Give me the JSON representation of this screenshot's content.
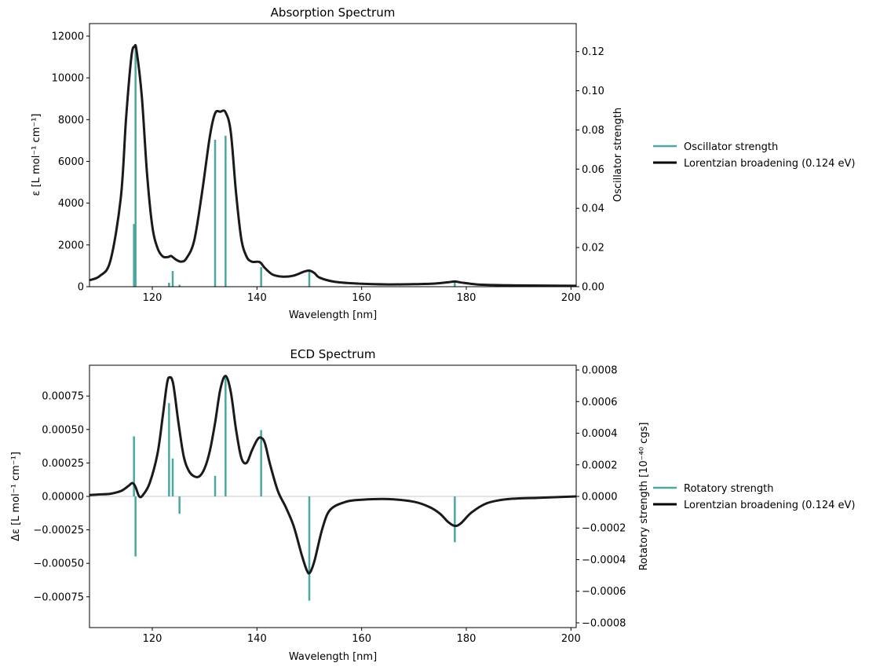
{
  "colors": {
    "stick": "#4aa8a0",
    "curve": "#1a1a1a",
    "zero_line": "#c8c8c8"
  },
  "chart_data": [
    {
      "type": "line",
      "title": "Absorption Spectrum",
      "xlabel": "Wavelength [nm]",
      "ylabel": "ε [L mol⁻¹ cm⁻¹]",
      "y2label": "Oscillator strength",
      "xlim": [
        108,
        201
      ],
      "ylim": [
        0,
        12600
      ],
      "y2lim": [
        0,
        0.1343
      ],
      "xticks": [
        120,
        140,
        160,
        180,
        200
      ],
      "yticks": [
        0,
        2000,
        4000,
        6000,
        8000,
        10000,
        12000
      ],
      "y2ticks": [
        0.0,
        0.02,
        0.04,
        0.06,
        0.08,
        0.1,
        0.12
      ],
      "y2tick_labels": [
        "0.00",
        "0.02",
        "0.04",
        "0.06",
        "0.08",
        "0.10",
        "0.12"
      ],
      "legend": [
        "Oscillator strength",
        "Lorentzian broadening (0.124 eV)"
      ],
      "legend_position": "right",
      "zero_line": false,
      "fwhm_ev": 0.124,
      "sticks": {
        "name": "Oscillator strength",
        "x": [
          116.5,
          116.8,
          123.2,
          123.9,
          125.2,
          132.0,
          134.0,
          140.8,
          150.0,
          177.8
        ],
        "values": [
          0.032,
          0.122,
          0.002,
          0.008,
          0.001,
          0.075,
          0.077,
          0.01,
          0.008,
          0.003
        ]
      },
      "curve": {
        "name": "Lorentzian broadening (0.124 eV)",
        "points": [
          [
            108,
            310
          ],
          [
            110,
            520
          ],
          [
            112,
            1250
          ],
          [
            114,
            4300
          ],
          [
            115,
            8100
          ],
          [
            116,
            11000
          ],
          [
            116.6,
            11500
          ],
          [
            117,
            11300
          ],
          [
            118,
            9100
          ],
          [
            119,
            5400
          ],
          [
            120,
            2900
          ],
          [
            121,
            1850
          ],
          [
            122,
            1450
          ],
          [
            123,
            1420
          ],
          [
            123.6,
            1470
          ],
          [
            124.5,
            1300
          ],
          [
            125.5,
            1200
          ],
          [
            126.5,
            1350
          ],
          [
            128,
            2200
          ],
          [
            129.5,
            4500
          ],
          [
            131,
            7200
          ],
          [
            132,
            8300
          ],
          [
            133,
            8380
          ],
          [
            134,
            8350
          ],
          [
            135,
            7400
          ],
          [
            136,
            4500
          ],
          [
            137,
            2300
          ],
          [
            138,
            1450
          ],
          [
            139,
            1200
          ],
          [
            140.5,
            1180
          ],
          [
            141.5,
            900
          ],
          [
            143,
            580
          ],
          [
            145,
            480
          ],
          [
            147,
            530
          ],
          [
            149,
            720
          ],
          [
            150,
            770
          ],
          [
            151,
            650
          ],
          [
            152,
            430
          ],
          [
            155,
            230
          ],
          [
            160,
            140
          ],
          [
            165,
            110
          ],
          [
            170,
            120
          ],
          [
            174,
            150
          ],
          [
            176.5,
            210
          ],
          [
            177.8,
            250
          ],
          [
            179,
            200
          ],
          [
            182,
            110
          ],
          [
            186,
            75
          ],
          [
            190,
            60
          ],
          [
            195,
            50
          ],
          [
            201,
            42
          ]
        ]
      }
    },
    {
      "type": "line",
      "title": "ECD Spectrum",
      "xlabel": "Wavelength [nm]",
      "ylabel": "Δε [L mol⁻¹ cm⁻¹]",
      "y2label": "Rotatory strength [10⁻⁴⁰ cgs]",
      "xlim": [
        108,
        201
      ],
      "ylim": [
        -0.00098,
        0.00098
      ],
      "y2lim": [
        -0.00083,
        0.00083
      ],
      "xticks": [
        120,
        140,
        160,
        180,
        200
      ],
      "yticks": [
        -0.00075,
        -0.0005,
        -0.00025,
        0.0,
        0.00025,
        0.0005,
        0.00075
      ],
      "ytick_labels": [
        "−0.00075",
        "−0.00050",
        "−0.00025",
        "0.00000",
        "0.00025",
        "0.00050",
        "0.00075"
      ],
      "y2ticks": [
        -0.0008,
        -0.0006,
        -0.0004,
        -0.0002,
        0.0,
        0.0002,
        0.0004,
        0.0006,
        0.0008
      ],
      "y2tick_labels": [
        "−0.0008",
        "−0.0006",
        "−0.0004",
        "−0.0002",
        "0.0000",
        "0.0002",
        "0.0004",
        "0.0006",
        "0.0008"
      ],
      "legend": [
        "Rotatory strength",
        "Lorentzian broadening (0.124 eV)"
      ],
      "legend_position": "right",
      "zero_line": true,
      "fwhm_ev": 0.124,
      "sticks": {
        "name": "Rotatory strength",
        "x": [
          116.5,
          116.8,
          123.2,
          123.9,
          125.2,
          132.0,
          134.0,
          140.8,
          150.0,
          177.8
        ],
        "values": [
          0.00038,
          -0.00038,
          0.00059,
          0.00024,
          -0.00011,
          0.00013,
          0.00076,
          0.00042,
          -0.00066,
          -0.00029
        ]
      },
      "curve": {
        "name": "Lorentzian broadening (0.124 eV)",
        "points": [
          [
            108,
            1e-05
          ],
          [
            110,
            1.5e-05
          ],
          [
            112,
            2e-05
          ],
          [
            114,
            4e-05
          ],
          [
            115.5,
            8e-05
          ],
          [
            116.2,
            0.0001
          ],
          [
            116.8,
            7e-05
          ],
          [
            117.5,
            0.0
          ],
          [
            118.2,
            1e-05
          ],
          [
            119.5,
            0.0001
          ],
          [
            121,
            0.00032
          ],
          [
            122,
            0.0006
          ],
          [
            122.8,
            0.00084
          ],
          [
            123.3,
            0.00089
          ],
          [
            124,
            0.00084
          ],
          [
            125,
            0.00055
          ],
          [
            126,
            0.0003
          ],
          [
            127,
            0.00019
          ],
          [
            128,
            0.00015
          ],
          [
            129,
            0.00015
          ],
          [
            130,
            0.00021
          ],
          [
            131,
            0.00034
          ],
          [
            132,
            0.00055
          ],
          [
            133,
            0.0008
          ],
          [
            134,
            0.0009
          ],
          [
            135,
            0.00078
          ],
          [
            136,
            0.0005
          ],
          [
            137,
            0.00029
          ],
          [
            138,
            0.00025
          ],
          [
            139,
            0.00034
          ],
          [
            140,
            0.00042
          ],
          [
            140.7,
            0.00044
          ],
          [
            141.5,
            0.0004
          ],
          [
            142.5,
            0.00024
          ],
          [
            144,
            4e-05
          ],
          [
            145.5,
            -8e-05
          ],
          [
            147,
            -0.00022
          ],
          [
            148.5,
            -0.00043
          ],
          [
            149.5,
            -0.00055
          ],
          [
            150.1,
            -0.00057
          ],
          [
            151,
            -0.00048
          ],
          [
            152.5,
            -0.00024
          ],
          [
            154,
            -0.0001
          ],
          [
            157,
            -4e-05
          ],
          [
            160,
            -2.5e-05
          ],
          [
            165,
            -2e-05
          ],
          [
            170,
            -4e-05
          ],
          [
            173,
            -8e-05
          ],
          [
            175,
            -0.00013
          ],
          [
            176.5,
            -0.00019
          ],
          [
            177.8,
            -0.00022
          ],
          [
            179,
            -0.0002
          ],
          [
            181,
            -0.00012
          ],
          [
            184,
            -5e-05
          ],
          [
            188,
            -2e-05
          ],
          [
            194,
            -1e-05
          ],
          [
            201,
            0.0
          ]
        ]
      }
    }
  ]
}
